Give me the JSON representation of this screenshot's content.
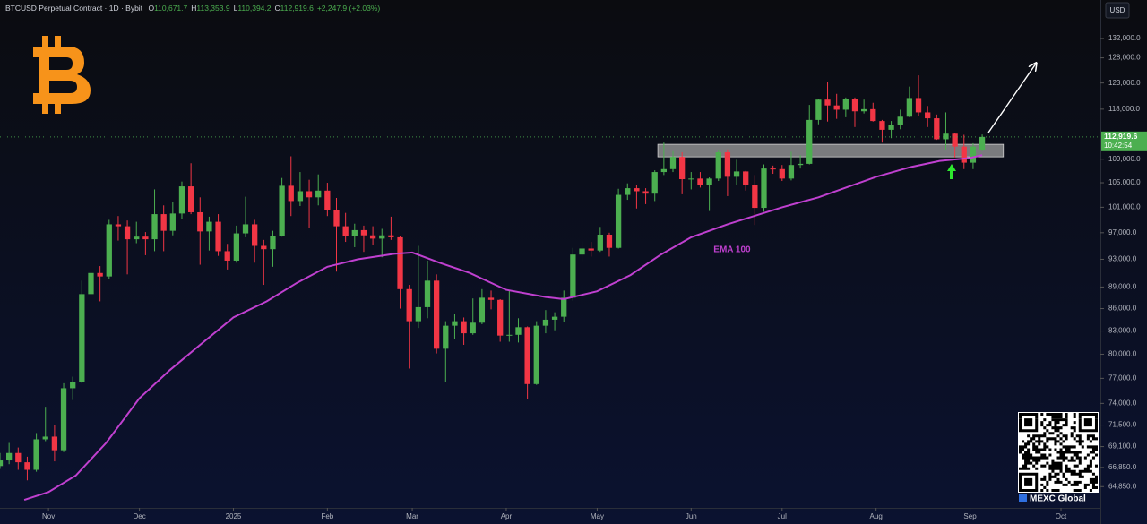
{
  "chart_data": {
    "type": "candlestick",
    "title": "BTCUSD Perpetual Contract · 1D · Bybit",
    "ohlc_legend": [
      {
        "key": "O",
        "value": "110,671.7"
      },
      {
        "key": "H",
        "value": "113,353.9"
      },
      {
        "key": "L",
        "value": "110,394.2"
      },
      {
        "key": "C",
        "value": "112,919.6"
      }
    ],
    "change": "+2,247.9 (+2.03%)",
    "currency": "USD",
    "last_price_label": "112,919.6",
    "countdown": "10:42:54",
    "ylog": true,
    "ylim": [
      62700,
      140300
    ],
    "yticks": [
      {
        "value": 132000,
        "label": "132,000.0"
      },
      {
        "value": 128000,
        "label": "128,000.0"
      },
      {
        "value": 123000,
        "label": "123,000.0"
      },
      {
        "value": 118000,
        "label": "118,000.0"
      },
      {
        "value": 109000,
        "label": "109,000.0"
      },
      {
        "value": 105000,
        "label": "105,000.0"
      },
      {
        "value": 101000,
        "label": "101,000.0"
      },
      {
        "value": 97000,
        "label": "97,000.0"
      },
      {
        "value": 93000,
        "label": "93,000.0"
      },
      {
        "value": 89000,
        "label": "89,000.0"
      },
      {
        "value": 86000,
        "label": "86,000.0"
      },
      {
        "value": 83000,
        "label": "83,000.0"
      },
      {
        "value": 80000,
        "label": "80,000.0"
      },
      {
        "value": 77000,
        "label": "77,000.0"
      },
      {
        "value": 74000,
        "label": "74,000.0"
      },
      {
        "value": 71500,
        "label": "71,500.0"
      },
      {
        "value": 69100,
        "label": "69,100.0"
      },
      {
        "value": 66850,
        "label": "66,850.0"
      },
      {
        "value": 64850,
        "label": "64,850.0"
      }
    ],
    "xlim": [
      0,
      363
    ],
    "xticks": [
      {
        "value": 16,
        "label": "Nov"
      },
      {
        "value": 46,
        "label": "Dec"
      },
      {
        "value": 77,
        "label": "2025"
      },
      {
        "value": 108,
        "label": "Feb"
      },
      {
        "value": 136,
        "label": "Mar"
      },
      {
        "value": 167,
        "label": "Apr"
      },
      {
        "value": 197,
        "label": "May"
      },
      {
        "value": 228,
        "label": "Jun"
      },
      {
        "value": 258,
        "label": "Jul"
      },
      {
        "value": 289,
        "label": "Aug"
      },
      {
        "value": 320,
        "label": "Sep"
      },
      {
        "value": 350,
        "label": "Oct"
      }
    ],
    "series": [
      {
        "up_color": "#4caf50",
        "down_color": "#f23645",
        "x": [
          0,
          3,
          6,
          9,
          12,
          15,
          18,
          21,
          24,
          27,
          30,
          33,
          36,
          39,
          42,
          45,
          48,
          51,
          54,
          57,
          60,
          63,
          66,
          69,
          72,
          75,
          78,
          81,
          84,
          87,
          90,
          93,
          96,
          99,
          102,
          105,
          108,
          111,
          114,
          117,
          120,
          123,
          126,
          129,
          132,
          135,
          138,
          141,
          144,
          147,
          150,
          153,
          156,
          159,
          162,
          165,
          168,
          171,
          174,
          177,
          180,
          183,
          186,
          189,
          192,
          195,
          198,
          201,
          204,
          207,
          210,
          213,
          216,
          219,
          222,
          225,
          228,
          231,
          234,
          237,
          240,
          243,
          246,
          249,
          252,
          255,
          258,
          261,
          264,
          267,
          270,
          273,
          276,
          279,
          282,
          285,
          288,
          291,
          294,
          297,
          300,
          303,
          306,
          309,
          312,
          315,
          318,
          321,
          324
        ],
        "values": [
          [
            67000,
            68400,
            66700,
            67600
          ],
          [
            67600,
            69500,
            67200,
            68400
          ],
          [
            68400,
            69000,
            66600,
            67400
          ],
          [
            67400,
            68000,
            65500,
            66600
          ],
          [
            66600,
            70600,
            66400,
            69900
          ],
          [
            69900,
            73600,
            69700,
            70200
          ],
          [
            70200,
            71500,
            67500,
            68700
          ],
          [
            68700,
            76400,
            68500,
            75800
          ],
          [
            75800,
            77200,
            74400,
            76600
          ],
          [
            76600,
            89900,
            76400,
            88000
          ],
          [
            88000,
            93400,
            85100,
            91000
          ],
          [
            91000,
            92000,
            87000,
            90500
          ],
          [
            90500,
            99000,
            90100,
            98300
          ],
          [
            98300,
            99600,
            95800,
            98000
          ],
          [
            98000,
            98900,
            90800,
            96000
          ],
          [
            96000,
            98700,
            95400,
            96400
          ],
          [
            96400,
            97100,
            93600,
            96000
          ],
          [
            96000,
            103900,
            94200,
            99900
          ],
          [
            99900,
            101300,
            94200,
            97300
          ],
          [
            97300,
            101900,
            96600,
            100000
          ],
          [
            100000,
            105200,
            99200,
            104400
          ],
          [
            104400,
            108300,
            99900,
            100200
          ],
          [
            100200,
            102600,
            92200,
            97200
          ],
          [
            97200,
            99500,
            94300,
            98700
          ],
          [
            98700,
            99900,
            93500,
            94200
          ],
          [
            94200,
            95300,
            91500,
            92800
          ],
          [
            92800,
            98100,
            92500,
            96900
          ],
          [
            96900,
            102700,
            96300,
            98300
          ],
          [
            98300,
            99000,
            92500,
            95000
          ],
          [
            95000,
            95900,
            89300,
            94500
          ],
          [
            94500,
            97300,
            91900,
            96500
          ],
          [
            96500,
            105800,
            96400,
            104500
          ],
          [
            104500,
            109500,
            99600,
            102000
          ],
          [
            102000,
            106800,
            101200,
            103600
          ],
          [
            103600,
            105500,
            97800,
            102600
          ],
          [
            102600,
            106400,
            101300,
            103700
          ],
          [
            103700,
            105000,
            99600,
            100600
          ],
          [
            100600,
            102500,
            91200,
            98000
          ],
          [
            98000,
            100100,
            95600,
            96500
          ],
          [
            96500,
            98400,
            94800,
            97400
          ],
          [
            97400,
            98100,
            94100,
            96600
          ],
          [
            96600,
            98000,
            95200,
            96100
          ],
          [
            96100,
            97600,
            93300,
            96600
          ],
          [
            96600,
            99500,
            95900,
            96300
          ],
          [
            96300,
            96500,
            86000,
            88700
          ],
          [
            88700,
            89300,
            78200,
            84300
          ],
          [
            84300,
            95000,
            83400,
            86200
          ],
          [
            86200,
            92800,
            84700,
            89900
          ],
          [
            89900,
            90800,
            80100,
            80700
          ],
          [
            80700,
            84300,
            76600,
            83700
          ],
          [
            83700,
            85300,
            81900,
            84300
          ],
          [
            84300,
            84800,
            81200,
            82700
          ],
          [
            82700,
            87400,
            82500,
            84100
          ],
          [
            84100,
            88700,
            83900,
            87500
          ],
          [
            87500,
            88500,
            85900,
            87200
          ],
          [
            87200,
            87300,
            81600,
            82400
          ],
          [
            82400,
            88500,
            81600,
            82500
          ],
          [
            82500,
            84700,
            81500,
            83500
          ],
          [
            83500,
            83600,
            74500,
            76300
          ],
          [
            76300,
            84300,
            76200,
            83700
          ],
          [
            83700,
            85800,
            82700,
            84500
          ],
          [
            84500,
            85500,
            83100,
            84900
          ],
          [
            84900,
            88500,
            84200,
            87500
          ],
          [
            87500,
            94700,
            87100,
            93700
          ],
          [
            93700,
            95700,
            92700,
            94600
          ],
          [
            94600,
            95600,
            93400,
            94300
          ],
          [
            94300,
            97900,
            94100,
            96700
          ],
          [
            96700,
            97000,
            93400,
            94700
          ],
          [
            94700,
            104000,
            94600,
            103000
          ],
          [
            103000,
            104900,
            102200,
            104100
          ],
          [
            104100,
            104600,
            100800,
            103600
          ],
          [
            103600,
            104100,
            101500,
            103200
          ],
          [
            103200,
            107100,
            102000,
            106800
          ],
          [
            106800,
            111900,
            106300,
            107300
          ],
          [
            107300,
            110400,
            106800,
            109400
          ],
          [
            109400,
            110200,
            103100,
            105600
          ],
          [
            105600,
            106800,
            103900,
            105700
          ],
          [
            105700,
            106800,
            104200,
            104700
          ],
          [
            104700,
            105900,
            100400,
            105700
          ],
          [
            105700,
            110500,
            105300,
            110200
          ],
          [
            110200,
            110700,
            102800,
            106000
          ],
          [
            106000,
            108900,
            104600,
            106900
          ],
          [
            106900,
            107000,
            103700,
            104600
          ],
          [
            104600,
            106300,
            98200,
            100900
          ],
          [
            100900,
            108100,
            100300,
            107400
          ],
          [
            107400,
            107900,
            106500,
            107300
          ],
          [
            107300,
            108000,
            105300,
            105700
          ],
          [
            105700,
            110300,
            105400,
            108000
          ],
          [
            108000,
            109700,
            107400,
            108200
          ],
          [
            108200,
            118800,
            108100,
            116000
          ],
          [
            116000,
            120000,
            115200,
            119800
          ],
          [
            119800,
            123200,
            115700,
            118700
          ],
          [
            118700,
            120900,
            116200,
            117900
          ],
          [
            117900,
            120200,
            116500,
            119900
          ],
          [
            119900,
            120200,
            114700,
            117600
          ],
          [
            117600,
            119800,
            117200,
            118000
          ],
          [
            118000,
            119200,
            115700,
            115800
          ],
          [
            115800,
            116000,
            111900,
            114200
          ],
          [
            114200,
            115800,
            112700,
            115000
          ],
          [
            115000,
            117900,
            114300,
            116600
          ],
          [
            116600,
            122300,
            116500,
            120100
          ],
          [
            120100,
            124500,
            116800,
            117400
          ],
          [
            117400,
            118600,
            114700,
            116300
          ],
          [
            116300,
            117000,
            112400,
            112500
          ],
          [
            112500,
            117400,
            110600,
            113500
          ],
          [
            113500,
            113700,
            109300,
            111200
          ],
          [
            111200,
            113300,
            107300,
            108400
          ],
          [
            108400,
            111800,
            107300,
            111200
          ],
          [
            110671.7,
            113353.9,
            110394.2,
            112919.6
          ]
        ]
      },
      {
        "type": "line",
        "name": "EMA 100",
        "color": "#c040d0",
        "x": [
          8,
          16,
          25,
          35,
          46,
          56,
          66,
          77,
          88,
          98,
          108,
          118,
          130,
          136,
          145,
          155,
          167,
          180,
          186,
          197,
          208,
          218,
          228,
          240,
          258,
          270,
          289,
          300,
          310,
          320,
          324
        ],
        "values": [
          63500,
          64300,
          66000,
          69500,
          74600,
          78000,
          81200,
          84800,
          87000,
          89600,
          91900,
          93000,
          93800,
          94000,
          92500,
          91000,
          88600,
          87600,
          87300,
          88400,
          90700,
          93700,
          96300,
          98300,
          101000,
          102600,
          106000,
          107600,
          108700,
          109200,
          109700
        ]
      }
    ],
    "support_zone": {
      "x": [
        217,
        331
      ],
      "y": [
        109400,
        111600
      ],
      "color": "#a0a0a0"
    }
  },
  "watermark": "MEXC Global"
}
